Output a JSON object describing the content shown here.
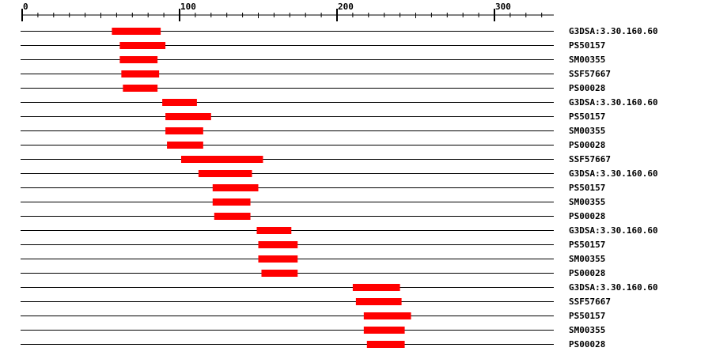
{
  "chart_data": {
    "type": "range-bar",
    "title": "",
    "xlabel": "",
    "ylabel": "",
    "xlim": [
      0,
      338
    ],
    "x_ticks_labeled": [
      0,
      100,
      200,
      300
    ],
    "minor_tick_step": 10,
    "grid": false,
    "bar_color": "#ff0000",
    "line_color": "#000000",
    "rows": [
      {
        "label": "G3DSA:3.30.160.60",
        "start": 57,
        "end": 88
      },
      {
        "label": "PS50157",
        "start": 62,
        "end": 91
      },
      {
        "label": "SM00355",
        "start": 62,
        "end": 86
      },
      {
        "label": "SSF57667",
        "start": 63,
        "end": 87
      },
      {
        "label": "PS00028",
        "start": 64,
        "end": 86
      },
      {
        "label": "G3DSA:3.30.160.60",
        "start": 89,
        "end": 111
      },
      {
        "label": "PS50157",
        "start": 91,
        "end": 120
      },
      {
        "label": "SM00355",
        "start": 91,
        "end": 115
      },
      {
        "label": "PS00028",
        "start": 92,
        "end": 115
      },
      {
        "label": "SSF57667",
        "start": 101,
        "end": 153
      },
      {
        "label": "G3DSA:3.30.160.60",
        "start": 112,
        "end": 146
      },
      {
        "label": "PS50157",
        "start": 121,
        "end": 150
      },
      {
        "label": "SM00355",
        "start": 121,
        "end": 145
      },
      {
        "label": "PS00028",
        "start": 122,
        "end": 145
      },
      {
        "label": "G3DSA:3.30.160.60",
        "start": 149,
        "end": 171
      },
      {
        "label": "PS50157",
        "start": 150,
        "end": 175
      },
      {
        "label": "SM00355",
        "start": 150,
        "end": 175
      },
      {
        "label": "PS00028",
        "start": 152,
        "end": 175
      },
      {
        "label": "G3DSA:3.30.160.60",
        "start": 210,
        "end": 240
      },
      {
        "label": "SSF57667",
        "start": 212,
        "end": 241
      },
      {
        "label": "PS50157",
        "start": 217,
        "end": 247
      },
      {
        "label": "SM00355",
        "start": 217,
        "end": 243
      },
      {
        "label": "PS00028",
        "start": 219,
        "end": 243
      }
    ]
  }
}
